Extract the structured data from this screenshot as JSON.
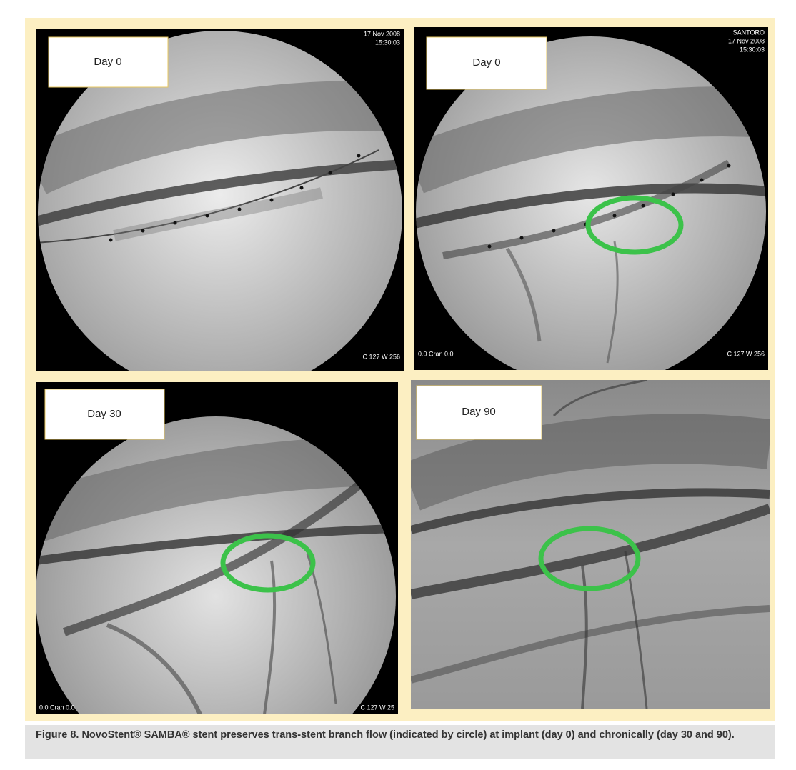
{
  "panels": [
    {
      "label": "Day 0",
      "overlays": [
        "17 Nov 2008",
        "15:30:03",
        "C 127 W 256"
      ]
    },
    {
      "label": "Day 0",
      "overlays": [
        "SANTORO",
        "17 Nov 2008",
        "15:30:03",
        "0.0 Cran 0.0",
        "C 127 W 256"
      ]
    },
    {
      "label": "Day 30",
      "overlays": [
        "0.0 Cran 0.0",
        "C 127 W 25"
      ]
    },
    {
      "label": "Day 90",
      "overlays": []
    }
  ],
  "caption": "Figure 8. NovoStent® SAMBA® stent preserves trans-stent branch flow (indicated by circle) at implant (day 0) and chronically (day 30 and 90)."
}
